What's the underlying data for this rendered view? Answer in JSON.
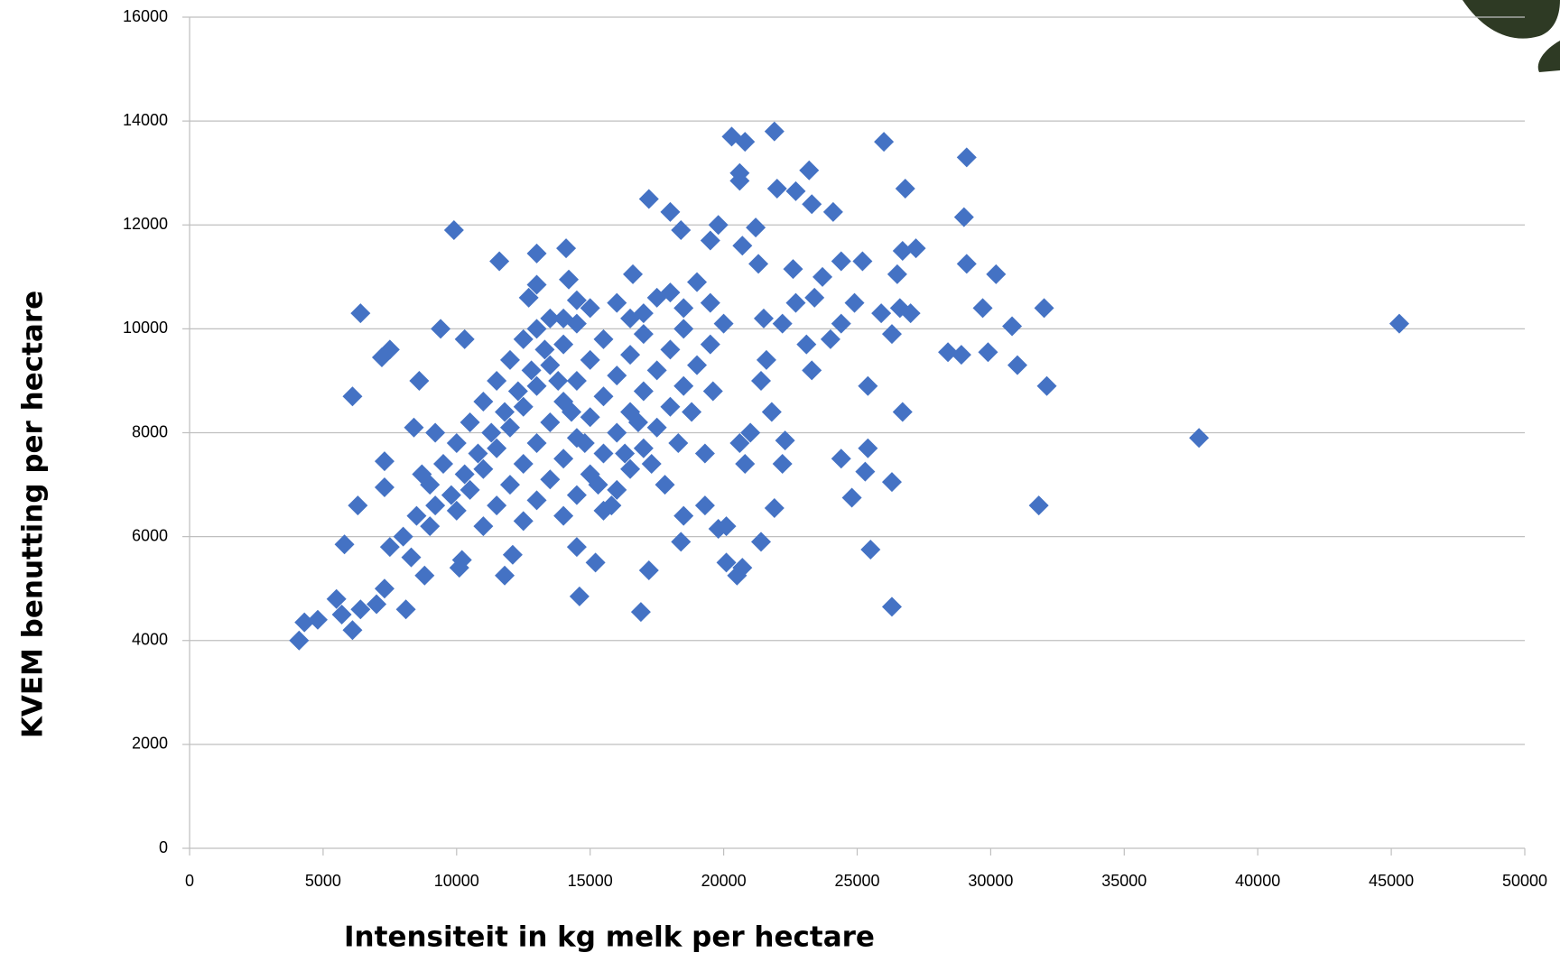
{
  "chart_data": {
    "type": "scatter",
    "x_label": "Intensiteit in kg melk per hectare",
    "y_label": "KVEM benutting per hectare",
    "color": "#4472c4",
    "grid": true,
    "xlim": [
      0,
      50000
    ],
    "xticks": [
      0,
      5000,
      10000,
      15000,
      20000,
      25000,
      30000,
      35000,
      40000,
      45000,
      50000
    ],
    "ylim": [
      0,
      16000
    ],
    "yticks": [
      0,
      2000,
      4000,
      6000,
      8000,
      10000,
      12000,
      14000,
      16000
    ],
    "x": [
      45300,
      37800,
      31800,
      32000,
      32100,
      31000,
      30800,
      30200,
      29900,
      29700,
      29100,
      29000,
      29100,
      28900,
      28400,
      26800,
      27200,
      26700,
      27000,
      26500,
      26600,
      26000,
      26300,
      25900,
      26700,
      26300,
      26300,
      25500,
      25400,
      25400,
      25300,
      24800,
      24400,
      25200,
      24900,
      24400,
      24100,
      24400,
      23700,
      23200,
      23300,
      22700,
      21900,
      20300,
      20600,
      20800,
      20600,
      22000,
      23100,
      23300,
      22300,
      21900,
      21400,
      20700,
      20500,
      20100,
      19800,
      20100,
      19300,
      18500,
      18400,
      17200,
      16900,
      14600,
      15200,
      14500,
      11800,
      12100,
      10200,
      10100,
      8800,
      8100,
      7000,
      6100,
      5700,
      5500,
      4800,
      4100,
      4300,
      6400,
      7300,
      5800,
      6300,
      7300,
      7300,
      6100,
      6400,
      7500,
      7200,
      8600,
      9400,
      9900,
      10300,
      11600,
      13000,
      14100,
      12700,
      13000,
      14200,
      14500,
      17200,
      18000,
      16600,
      18400,
      19500,
      19800,
      20700,
      21200,
      21300,
      22600,
      22700,
      22200,
      21500,
      21800,
      22200,
      21000,
      20600,
      20800,
      21400,
      21600,
      23400,
      24000,
      9000,
      9500,
      10000,
      10500,
      11000,
      11500,
      12000,
      12500,
      13000,
      13500,
      10000,
      10500,
      11000,
      11500,
      12000,
      12500,
      13000,
      13500,
      14000,
      14500,
      11000,
      11500,
      12000,
      12500,
      13000,
      13500,
      14000,
      14500,
      15000,
      15500,
      12500,
      13000,
      13500,
      14000,
      14500,
      15000,
      15500,
      16000,
      16500,
      17000,
      14000,
      14500,
      15000,
      15500,
      16000,
      16500,
      17000,
      17500,
      18000,
      18500,
      15500,
      16000,
      16500,
      17000,
      17500,
      18000,
      18500,
      19000,
      19500,
      20000,
      16000,
      17000,
      18000,
      19000,
      15000,
      14000,
      16500,
      17500,
      18500,
      19500,
      8000,
      8500,
      9000,
      7500,
      8300,
      9200,
      9800,
      8700,
      9200,
      8400,
      10300,
      10800,
      11300,
      11800,
      12300,
      12800,
      13300,
      13800,
      14300,
      14800,
      15300,
      15800,
      16300,
      16800,
      17300,
      17800,
      18300,
      18800,
      19300,
      19600
    ],
    "values": [
      10100,
      7900,
      6600,
      10400,
      8900,
      9300,
      10050,
      11050,
      9550,
      10400,
      11250,
      12150,
      13300,
      9500,
      9550,
      12700,
      11550,
      11500,
      10300,
      11050,
      10400,
      13600,
      9900,
      10300,
      8400,
      7050,
      4650,
      5750,
      7700,
      8900,
      7250,
      6750,
      7500,
      11300,
      10500,
      11300,
      12250,
      10100,
      11000,
      13050,
      12400,
      12650,
      13800,
      13700,
      13000,
      13600,
      12850,
      12700,
      9700,
      9200,
      7850,
      6550,
      5900,
      5400,
      5250,
      5500,
      6150,
      6200,
      6600,
      6400,
      5900,
      5350,
      4550,
      4850,
      5500,
      5800,
      5250,
      5650,
      5550,
      5400,
      5250,
      4600,
      4700,
      4200,
      4500,
      4800,
      4400,
      4000,
      4350,
      4600,
      5000,
      5850,
      6600,
      6950,
      7450,
      8700,
      10300,
      9600,
      9450,
      9000,
      10000,
      11900,
      9800,
      11300,
      11450,
      11550,
      10600,
      10850,
      10950,
      10550,
      12500,
      12250,
      11050,
      11900,
      11700,
      12000,
      11600,
      11950,
      11250,
      11150,
      10500,
      10100,
      10200,
      8400,
      7400,
      8000,
      7800,
      7400,
      9000,
      9400,
      10600,
      9800,
      7000,
      7400,
      7800,
      8200,
      8600,
      9000,
      9400,
      9800,
      10000,
      10200,
      6500,
      6900,
      7300,
      7700,
      8100,
      8500,
      8900,
      9300,
      9700,
      10100,
      6200,
      6600,
      7000,
      7400,
      7800,
      8200,
      8600,
      9000,
      9400,
      9800,
      6300,
      6700,
      7100,
      7500,
      7900,
      8300,
      8700,
      9100,
      9500,
      9900,
      6400,
      6800,
      7200,
      7600,
      8000,
      8400,
      8800,
      9200,
      9600,
      10000,
      6500,
      6900,
      7300,
      7700,
      8100,
      8500,
      8900,
      9300,
      9700,
      10100,
      10500,
      10300,
      10700,
      10900,
      10400,
      10200,
      10200,
      10600,
      10400,
      10500,
      6000,
      6400,
      6200,
      5800,
      5600,
      6600,
      6800,
      7200,
      8000,
      8100,
      7200,
      7600,
      8000,
      8400,
      8800,
      9200,
      9600,
      9000,
      8400,
      7800,
      7000,
      6600,
      7600,
      8200,
      7400,
      7000,
      7800,
      8400,
      7600,
      8800
    ]
  }
}
